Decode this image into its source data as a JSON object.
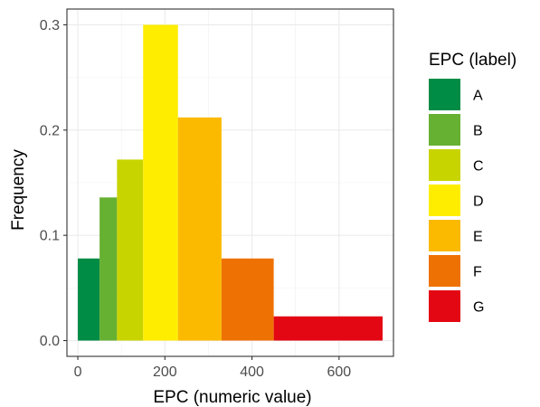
{
  "chart_data": {
    "type": "histogram",
    "title": "",
    "xlabel": "EPC (numeric value)",
    "ylabel": "Frequency",
    "xlim": [
      -25,
      725
    ],
    "ylim": [
      -0.015,
      0.315
    ],
    "x_ticks": [
      0,
      200,
      400,
      600
    ],
    "y_ticks": [
      0.0,
      0.1,
      0.2,
      0.3
    ],
    "x_tick_labels": [
      "0",
      "200",
      "400",
      "600"
    ],
    "y_tick_labels": [
      "0.0",
      "0.1",
      "0.2",
      "0.3"
    ],
    "grid": true,
    "legend": {
      "title": "EPC (label)",
      "placement": "right"
    },
    "bars": [
      {
        "label": "A",
        "x0": 0,
        "x1": 50,
        "value": 0.078,
        "color": "#008C45"
      },
      {
        "label": "B",
        "x0": 50,
        "x1": 90,
        "value": 0.136,
        "color": "#66B032"
      },
      {
        "label": "C",
        "x0": 90,
        "x1": 150,
        "value": 0.172,
        "color": "#C8D400"
      },
      {
        "label": "D",
        "x0": 150,
        "x1": 230,
        "value": 0.3,
        "color": "#FFED00"
      },
      {
        "label": "E",
        "x0": 230,
        "x1": 330,
        "value": 0.212,
        "color": "#FBBA00"
      },
      {
        "label": "F",
        "x0": 330,
        "x1": 450,
        "value": 0.078,
        "color": "#EE7203"
      },
      {
        "label": "G",
        "x0": 450,
        "x1": 700,
        "value": 0.023,
        "color": "#E30613"
      }
    ]
  }
}
